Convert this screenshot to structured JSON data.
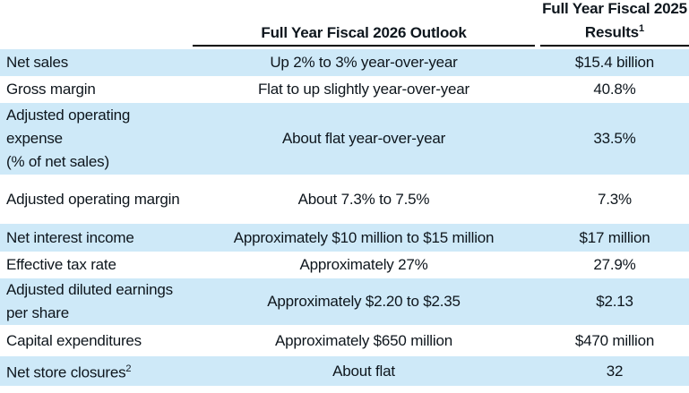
{
  "table": {
    "header": {
      "col2_title": "Full Year Fiscal 2026 Outlook",
      "col3_title_line1": "Full Year Fiscal 2025",
      "col3_title_line2": "Results",
      "col3_title_sup": "1"
    },
    "rows": [
      {
        "label": "Net sales",
        "outlook": "Up 2% to 3% year-over-year",
        "results": "$15.4 billion",
        "shaded": true
      },
      {
        "label": "Gross margin",
        "outlook": "Flat to up slightly year-over-year",
        "results": "40.8%",
        "shaded": false
      },
      {
        "label_lines": [
          "Adjusted operating",
          "expense",
          "(% of net sales)"
        ],
        "outlook": "About flat year-over-year",
        "results": "33.5%",
        "shaded": true
      },
      {
        "label": "Adjusted operating margin",
        "outlook": "About 7.3% to 7.5%",
        "results": "7.3%",
        "shaded": false
      },
      {
        "label": "Net interest income",
        "outlook": "Approximately $10 million to $15 million",
        "results": "$17 million",
        "shaded": true
      },
      {
        "label": "Effective tax rate",
        "outlook": "Approximately 27%",
        "results": "27.9%",
        "shaded": false
      },
      {
        "label_lines": [
          "Adjusted diluted earnings",
          "per share"
        ],
        "outlook": "Approximately $2.20 to $2.35",
        "results": "$2.13",
        "shaded": true
      },
      {
        "label": "Capital expenditures",
        "outlook": "Approximately $650 million",
        "results": "$470 million",
        "shaded": false
      },
      {
        "label": "Net store closures",
        "label_sup": "2",
        "outlook": "About flat",
        "results": "32",
        "shaded": true
      }
    ],
    "colors": {
      "row_shade": "#cee9f8",
      "text": "#0e161d",
      "rule": "#000000"
    }
  }
}
